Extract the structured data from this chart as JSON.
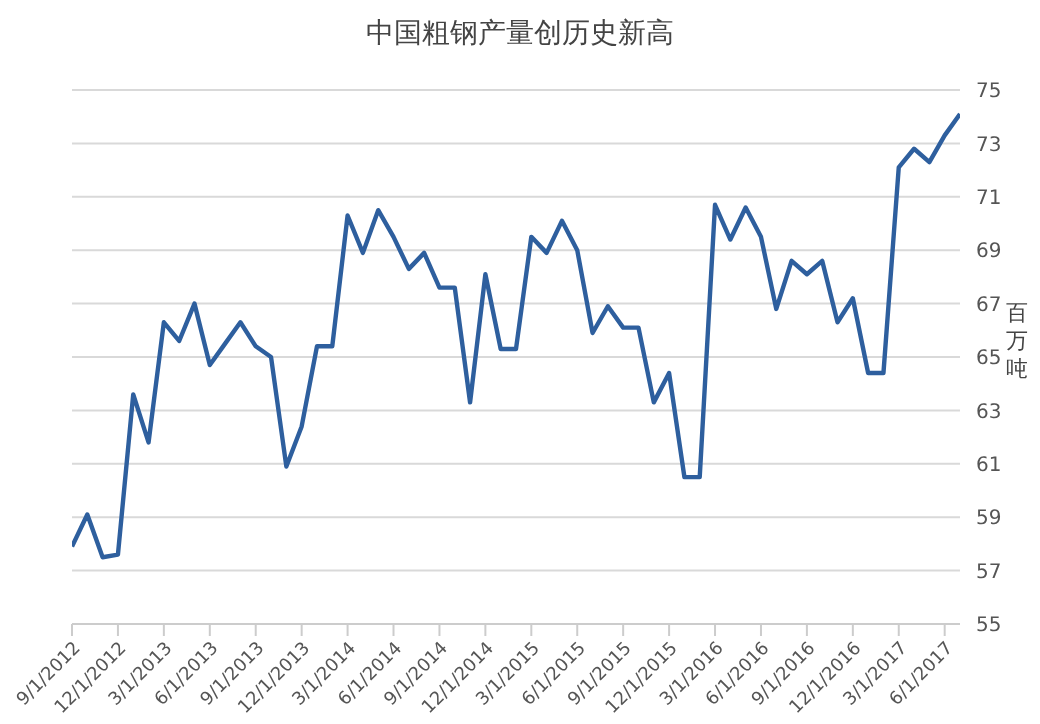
{
  "chart_data": {
    "type": "line",
    "title": "中国粗钢产量创历史新高",
    "ylabel": "百万吨",
    "x": [
      "2012-09",
      "2012-10",
      "2012-11",
      "2012-12",
      "2013-01",
      "2013-02",
      "2013-03",
      "2013-04",
      "2013-05",
      "2013-06",
      "2013-07",
      "2013-08",
      "2013-09",
      "2013-10",
      "2013-11",
      "2013-12",
      "2014-01",
      "2014-02",
      "2014-03",
      "2014-04",
      "2014-05",
      "2014-06",
      "2014-07",
      "2014-08",
      "2014-09",
      "2014-10",
      "2014-11",
      "2014-12",
      "2015-01",
      "2015-02",
      "2015-03",
      "2015-04",
      "2015-05",
      "2015-06",
      "2015-07",
      "2015-08",
      "2015-09",
      "2015-10",
      "2015-11",
      "2015-12",
      "2016-01",
      "2016-02",
      "2016-03",
      "2016-04",
      "2016-05",
      "2016-06",
      "2016-07",
      "2016-08",
      "2016-09",
      "2016-10",
      "2016-11",
      "2016-12",
      "2017-01",
      "2017-02",
      "2017-03",
      "2017-04",
      "2017-05",
      "2017-06",
      "2017-07"
    ],
    "series": [
      {
        "color": "#2e5f9e",
        "values": [
          57.9,
          59.1,
          57.5,
          57.6,
          63.6,
          61.8,
          66.3,
          65.6,
          67.0,
          64.7,
          65.5,
          66.3,
          65.4,
          65.0,
          60.9,
          62.4,
          65.4,
          65.4,
          70.3,
          68.9,
          70.5,
          69.5,
          68.3,
          68.9,
          67.6,
          67.6,
          63.3,
          68.1,
          65.3,
          65.3,
          69.5,
          68.9,
          70.1,
          69.0,
          65.9,
          66.9,
          66.1,
          66.1,
          63.3,
          64.4,
          60.5,
          60.5,
          70.7,
          69.4,
          70.6,
          69.5,
          66.8,
          68.6,
          68.1,
          68.6,
          66.3,
          67.2,
          64.4,
          64.4,
          72.1,
          72.8,
          72.3,
          73.3,
          74.1
        ]
      }
    ],
    "xlim": [
      "2012-09",
      "2017-07"
    ],
    "xticks": [
      {
        "value": "2012-09",
        "label": "9/1/2012"
      },
      {
        "value": "2012-12",
        "label": "12/1/2012"
      },
      {
        "value": "2013-03",
        "label": "3/1/2013"
      },
      {
        "value": "2013-06",
        "label": "6/1/2013"
      },
      {
        "value": "2013-09",
        "label": "9/1/2013"
      },
      {
        "value": "2013-12",
        "label": "12/1/2013"
      },
      {
        "value": "2014-03",
        "label": "3/1/2014"
      },
      {
        "value": "2014-06",
        "label": "6/1/2014"
      },
      {
        "value": "2014-09",
        "label": "9/1/2014"
      },
      {
        "value": "2014-12",
        "label": "12/1/2014"
      },
      {
        "value": "2015-03",
        "label": "3/1/2015"
      },
      {
        "value": "2015-06",
        "label": "6/1/2015"
      },
      {
        "value": "2015-09",
        "label": "9/1/2015"
      },
      {
        "value": "2015-12",
        "label": "12/1/2015"
      },
      {
        "value": "2016-03",
        "label": "3/1/2016"
      },
      {
        "value": "2016-06",
        "label": "6/1/2016"
      },
      {
        "value": "2016-09",
        "label": "9/1/2016"
      },
      {
        "value": "2016-12",
        "label": "12/1/2016"
      },
      {
        "value": "2017-03",
        "label": "3/1/2017"
      },
      {
        "value": "2017-06",
        "label": "6/1/2017"
      }
    ],
    "ylim": [
      55,
      75
    ],
    "yticks": [
      55,
      57,
      59,
      61,
      63,
      65,
      67,
      69,
      71,
      73,
      75
    ],
    "grid": "y",
    "marker": "none",
    "line_style": "solid",
    "legend": false
  }
}
